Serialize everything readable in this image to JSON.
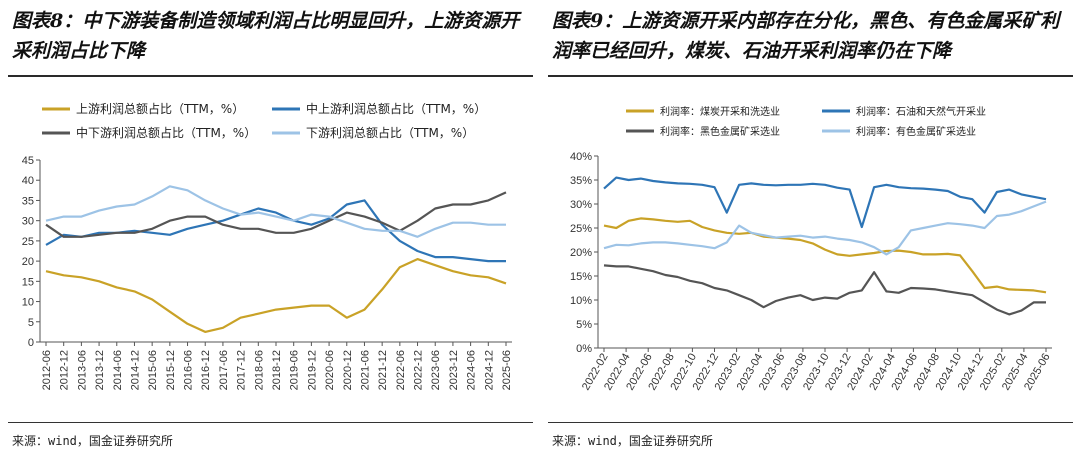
{
  "left": {
    "title": "图表8：中下游装备制造领域利润占比明显回升，上游资源开采利润占比下降",
    "source": "来源：wind，国金证券研究所",
    "chart_data": {
      "type": "line",
      "ylim": [
        0,
        45
      ],
      "yticks": [
        "0",
        "5",
        "10",
        "15",
        "20",
        "25",
        "30",
        "35",
        "40",
        "45"
      ],
      "xticks": [
        "2012-06",
        "2012-12",
        "2013-06",
        "2013-12",
        "2014-06",
        "2014-12",
        "2015-06",
        "2015-12",
        "2016-06",
        "2016-12",
        "2017-06",
        "2017-12",
        "2018-06",
        "2018-12",
        "2019-06",
        "2019-12",
        "2020-06",
        "2020-12",
        "2021-06",
        "2021-12",
        "2022-06",
        "2022-12",
        "2023-06",
        "2023-12",
        "2024-06",
        "2024-12",
        "2025-06"
      ],
      "series": [
        {
          "name": "上游利润总额占比（TTM，%）",
          "color": "#C9A227",
          "values": [
            17.5,
            16.5,
            16,
            15,
            13.5,
            12.5,
            10.5,
            7.5,
            4.5,
            2.5,
            3.5,
            6,
            7,
            8,
            8.5,
            9,
            9,
            6,
            8,
            13,
            18.5,
            20.5,
            19,
            17.5,
            16.5,
            16,
            14.5
          ]
        },
        {
          "name": "中上游利润总额占比（TTM，%）",
          "color": "#2E75B6",
          "values": [
            24,
            26.5,
            26,
            27,
            27,
            27.5,
            27,
            26.5,
            28,
            29,
            30,
            31.5,
            33,
            32,
            30,
            29,
            30.5,
            34,
            35,
            29,
            25,
            22.5,
            21,
            21,
            20.5,
            20,
            20
          ]
        },
        {
          "name": "中下游利润总额占比（TTM，%）",
          "color": "#555555",
          "values": [
            29,
            26,
            26,
            26.5,
            27,
            27,
            28,
            30,
            31,
            31,
            29,
            28,
            28,
            27,
            27,
            28,
            30,
            32,
            31,
            29.5,
            27.5,
            30,
            33,
            34,
            34,
            35,
            37
          ]
        },
        {
          "name": "下游利润总额占比（TTM，%）",
          "color": "#9DC3E6",
          "values": [
            30,
            31,
            31,
            32.5,
            33.5,
            34,
            36,
            38.5,
            37.5,
            35,
            33,
            31.5,
            32,
            31,
            30,
            31.5,
            31,
            29.5,
            28,
            27.5,
            27.5,
            26,
            28,
            29.5,
            29.5,
            29,
            29
          ]
        }
      ]
    }
  },
  "right": {
    "title": "图表9：上游资源开采内部存在分化，黑色、有色金属采矿利润率已经回升，煤炭、石油开采利润率仍在下降",
    "source": "来源：wind，国金证券研究所",
    "chart_data": {
      "type": "line",
      "ylim": [
        0,
        40
      ],
      "yticks": [
        "0%",
        "5%",
        "10%",
        "15%",
        "20%",
        "25%",
        "30%",
        "35%",
        "40%"
      ],
      "xticks": [
        "2022-02",
        "2022-04",
        "2022-06",
        "2022-08",
        "2022-10",
        "2022-12",
        "2023-02",
        "2023-04",
        "2023-06",
        "2023-08",
        "2023-10",
        "2023-12",
        "2024-02",
        "2024-04",
        "2024-06",
        "2024-08",
        "2024-10",
        "2024-12",
        "2025-02",
        "2025-04",
        "2025-06"
      ],
      "series": [
        {
          "name": "利润率：煤炭开采和洗选业",
          "color": "#C9A227",
          "values": [
            25.5,
            25,
            26.5,
            27,
            26.8,
            26.5,
            26.3,
            26.5,
            25.2,
            24.5,
            24,
            23.8,
            24,
            23.2,
            23,
            22.8,
            22.5,
            21.8,
            20.5,
            19.5,
            19.2,
            19.5,
            19.8,
            20.2,
            20.3,
            20,
            19.5,
            19.5,
            19.6,
            19.3,
            16,
            12.5,
            12.8,
            12.2,
            12.1,
            12,
            11.6
          ]
        },
        {
          "name": "利润率：石油和天然气开采业",
          "color": "#2E75B6",
          "values": [
            33.2,
            35.5,
            35,
            35.3,
            34.8,
            34.5,
            34.3,
            34.2,
            34,
            33.5,
            28.2,
            34,
            34.3,
            34,
            33.9,
            34,
            34,
            34.2,
            34,
            33.4,
            33,
            25.2,
            33.5,
            34,
            33.5,
            33.3,
            33.2,
            33,
            32.7,
            31.5,
            31,
            28.2,
            32.5,
            33,
            32,
            31.5,
            31
          ]
        },
        {
          "name": "利润率：黑色金属矿采选业",
          "color": "#555555",
          "values": [
            17.2,
            17,
            17,
            16.5,
            16,
            15.2,
            14.8,
            14,
            13.5,
            12.5,
            12,
            11,
            10,
            8.5,
            9.8,
            10.5,
            11,
            10,
            10.5,
            10.3,
            11.5,
            12,
            15.8,
            11.8,
            11.5,
            12.5,
            12.4,
            12.2,
            11.8,
            11.4,
            11,
            9.5,
            8,
            7,
            7.8,
            9.5,
            9.5
          ]
        },
        {
          "name": "利润率：有色金属矿采选业",
          "color": "#9DC3E6",
          "values": [
            20.8,
            21.5,
            21.4,
            21.8,
            22,
            22,
            21.8,
            21.5,
            21.2,
            20.8,
            22,
            25.5,
            24,
            23.5,
            23,
            23.2,
            23.4,
            23,
            23.2,
            22.8,
            22.5,
            22,
            21,
            19.5,
            21,
            24.5,
            25,
            25.5,
            26,
            25.8,
            25.5,
            25,
            27.5,
            27.8,
            28.5,
            29.5,
            30.5
          ]
        }
      ]
    }
  }
}
